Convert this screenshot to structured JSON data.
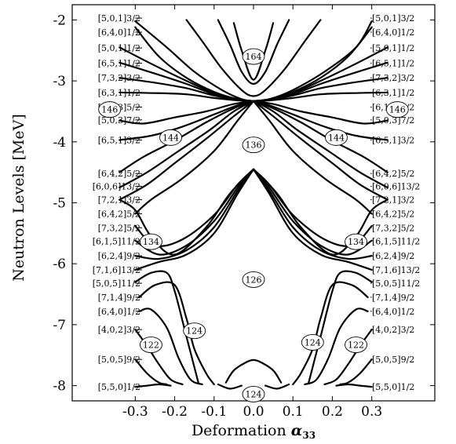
{
  "chart_data": {
    "type": "line",
    "title": "",
    "xlabel": "Deformation",
    "xlabel_symbol": "α",
    "xlabel_subscript": "33",
    "ylabel": "Neutron Levels [MeV]",
    "xlim": [
      -0.46,
      0.46
    ],
    "ylim": [
      -8.25,
      -1.75
    ],
    "x_ticks": [
      -0.3,
      -0.2,
      -0.1,
      0.0,
      0.1,
      0.2,
      0.3
    ],
    "x_tick_labels": [
      "-0.3",
      "-0.2",
      "-0.1",
      "0.0",
      "0.1",
      "0.2",
      "0.3"
    ],
    "y_ticks": [
      -2,
      -3,
      -4,
      -5,
      -6,
      -7,
      -8
    ],
    "y_tick_labels": [
      "-2",
      "-3",
      "-4",
      "-5",
      "-6",
      "-7",
      "-8"
    ],
    "grid": false,
    "legend": "none",
    "orbital_labels": [
      {
        "text": "[5,0,1]3/2",
        "y": -1.97
      },
      {
        "text": "[6,4,0]1/2",
        "y": -2.2
      },
      {
        "text": "[5,0,1]1/2",
        "y": -2.46
      },
      {
        "text": "[6,5,1]1/2",
        "y": -2.71
      },
      {
        "text": "[7,3,2]3/2",
        "y": -2.95
      },
      {
        "text": "[6,3,1]1/2",
        "y": -3.19
      },
      {
        "text": "[6,1,3]5/2",
        "y": -3.43
      },
      {
        "text": "[5,0,3]7/2",
        "y": -3.64
      },
      {
        "text": "[6,5,1]3/2",
        "y": -3.97
      },
      {
        "text": "[6,4,2]5/2",
        "y": -4.52
      },
      {
        "text": "[6,0,6]13/2",
        "y": -4.73
      },
      {
        "text": "[7,2,1]3/2",
        "y": -4.95
      },
      {
        "text": "[6,4,2]5/2",
        "y": -5.18
      },
      {
        "text": "[7,3,2]5/2",
        "y": -5.41
      },
      {
        "text": "[6,1,5]11/2",
        "y": -5.63
      },
      {
        "text": "[6,2,4]9/2",
        "y": -5.87
      },
      {
        "text": "[7,1,6]13/2",
        "y": -6.1
      },
      {
        "text": "[5,0,5]11/2",
        "y": -6.32
      },
      {
        "text": "[7,1,4]9/2",
        "y": -6.55
      },
      {
        "text": "[6,4,0]1/2",
        "y": -6.78
      },
      {
        "text": "[4,0,2]3/2",
        "y": -7.08
      },
      {
        "text": "[5,0,5]9/2",
        "y": -7.57
      },
      {
        "text": "[5,5,0]1/2",
        "y": -8.02
      }
    ],
    "magic_numbers": [
      {
        "text": "164",
        "x": 0.0,
        "y": -2.6
      },
      {
        "text": "146",
        "x": -0.365,
        "y": -3.47
      },
      {
        "text": "146",
        "x": 0.365,
        "y": -3.47
      },
      {
        "text": "144",
        "x": -0.21,
        "y": -3.93
      },
      {
        "text": "144",
        "x": 0.21,
        "y": -3.93
      },
      {
        "text": "136",
        "x": 0.0,
        "y": -4.05
      },
      {
        "text": "134",
        "x": -0.26,
        "y": -5.64
      },
      {
        "text": "134",
        "x": 0.26,
        "y": -5.64
      },
      {
        "text": "126",
        "x": 0.0,
        "y": -6.26
      },
      {
        "text": "124",
        "x": -0.15,
        "y": -7.1
      },
      {
        "text": "124",
        "x": 0.15,
        "y": -7.29
      },
      {
        "text": "122",
        "x": -0.26,
        "y": -7.33
      },
      {
        "text": "122",
        "x": 0.26,
        "y": -7.33
      },
      {
        "text": "124",
        "x": 0.0,
        "y": -8.14
      }
    ],
    "series": [
      {
        "x": [
          -0.3,
          -0.22,
          -0.15,
          -0.08,
          -0.03,
          0.0
        ],
        "values": [
          -2.02,
          -2.45,
          -2.85,
          -3.15,
          -3.3,
          -3.33
        ]
      },
      {
        "x": [
          -0.3,
          -0.24,
          -0.17,
          -0.1,
          -0.04,
          0.0
        ],
        "values": [
          -2.12,
          -2.6,
          -2.95,
          -3.18,
          -3.3,
          -3.33
        ]
      },
      {
        "x": [
          -0.34,
          -0.25,
          -0.17,
          -0.1,
          -0.04,
          0.0
        ],
        "values": [
          -2.45,
          -2.75,
          -3.0,
          -3.2,
          -3.3,
          -3.33
        ]
      },
      {
        "x": [
          -0.34,
          -0.25,
          -0.17,
          -0.1,
          -0.04,
          0.0
        ],
        "values": [
          -2.7,
          -2.88,
          -3.05,
          -3.22,
          -3.31,
          -3.33
        ]
      },
      {
        "x": [
          -0.34,
          -0.25,
          -0.17,
          -0.1,
          -0.04,
          0.0
        ],
        "values": [
          -2.95,
          -3.03,
          -3.12,
          -3.24,
          -3.31,
          -3.33
        ]
      },
      {
        "x": [
          -0.34,
          -0.25,
          -0.17,
          -0.1,
          -0.04,
          0.0
        ],
        "values": [
          -3.19,
          -3.2,
          -3.22,
          -3.28,
          -3.32,
          -3.33
        ]
      },
      {
        "x": [
          -0.34,
          -0.28,
          -0.2,
          -0.12,
          -0.05,
          0.0
        ],
        "values": [
          -3.65,
          -3.7,
          -3.6,
          -3.5,
          -3.38,
          -3.33
        ]
      },
      {
        "x": [
          -0.34,
          -0.26,
          -0.18,
          -0.1,
          -0.04,
          0.0
        ],
        "values": [
          -3.97,
          -3.9,
          -3.75,
          -3.55,
          -3.4,
          -3.33
        ]
      },
      {
        "x": [
          -0.34,
          -0.28,
          -0.2,
          -0.12,
          -0.05,
          0.0
        ],
        "values": [
          -4.5,
          -4.25,
          -3.98,
          -3.68,
          -3.45,
          -3.33
        ]
      },
      {
        "x": [
          -0.34,
          -0.27,
          -0.19,
          -0.11,
          -0.05,
          0.0
        ],
        "values": [
          -4.75,
          -4.5,
          -4.15,
          -3.8,
          -3.5,
          -3.33
        ]
      },
      {
        "x": [
          -0.34,
          -0.27,
          -0.2,
          -0.12,
          -0.05,
          0.0
        ],
        "values": [
          -4.95,
          -4.7,
          -4.35,
          -3.95,
          -3.58,
          -3.33
        ]
      },
      {
        "x": [
          -0.3,
          -0.26,
          -0.18,
          -0.1,
          -0.04,
          0.0
        ],
        "values": [
          -5.18,
          -4.95,
          -4.6,
          -4.15,
          -3.65,
          -3.33
        ]
      },
      {
        "x": [
          0.0,
          0.04,
          0.1,
          0.18,
          0.26,
          0.3
        ],
        "values": [
          -3.33,
          -3.3,
          -3.15,
          -2.85,
          -2.45,
          -2.02
        ]
      },
      {
        "x": [
          0.0,
          0.04,
          0.1,
          0.17,
          0.24,
          0.3
        ],
        "values": [
          -3.33,
          -3.3,
          -3.18,
          -2.95,
          -2.6,
          -2.12
        ]
      },
      {
        "x": [
          0.0,
          0.04,
          0.1,
          0.17,
          0.25,
          0.34
        ],
        "values": [
          -3.33,
          -3.3,
          -3.2,
          -3.0,
          -2.75,
          -2.45
        ]
      },
      {
        "x": [
          0.0,
          0.04,
          0.1,
          0.17,
          0.25,
          0.34
        ],
        "values": [
          -3.33,
          -3.31,
          -3.22,
          -3.05,
          -2.88,
          -2.7
        ]
      },
      {
        "x": [
          0.0,
          0.04,
          0.1,
          0.17,
          0.25,
          0.34
        ],
        "values": [
          -3.33,
          -3.31,
          -3.24,
          -3.12,
          -3.03,
          -2.95
        ]
      },
      {
        "x": [
          0.0,
          0.04,
          0.1,
          0.17,
          0.25,
          0.34
        ],
        "values": [
          -3.33,
          -3.32,
          -3.28,
          -3.22,
          -3.2,
          -3.19
        ]
      },
      {
        "x": [
          0.0,
          0.05,
          0.12,
          0.2,
          0.28,
          0.34
        ],
        "values": [
          -3.33,
          -3.38,
          -3.5,
          -3.6,
          -3.7,
          -3.65
        ]
      },
      {
        "x": [
          0.0,
          0.04,
          0.1,
          0.18,
          0.26,
          0.34
        ],
        "values": [
          -3.33,
          -3.4,
          -3.55,
          -3.75,
          -3.9,
          -3.97
        ]
      },
      {
        "x": [
          0.0,
          0.05,
          0.12,
          0.2,
          0.28,
          0.34
        ],
        "values": [
          -3.33,
          -3.45,
          -3.68,
          -3.98,
          -4.25,
          -4.5
        ]
      },
      {
        "x": [
          0.0,
          0.05,
          0.11,
          0.19,
          0.27,
          0.34
        ],
        "values": [
          -3.33,
          -3.5,
          -3.8,
          -4.15,
          -4.5,
          -4.75
        ]
      },
      {
        "x": [
          0.0,
          0.05,
          0.12,
          0.2,
          0.27,
          0.34
        ],
        "values": [
          -3.33,
          -3.58,
          -3.95,
          -4.35,
          -4.7,
          -4.95
        ]
      },
      {
        "x": [
          0.0,
          0.04,
          0.1,
          0.18,
          0.26,
          0.3
        ],
        "values": [
          -3.33,
          -3.65,
          -4.15,
          -4.6,
          -4.95,
          -5.18
        ]
      },
      {
        "x": [
          -0.05,
          -0.03,
          0.0,
          0.03,
          0.05
        ],
        "values": [
          -2.05,
          -2.5,
          -2.98,
          -2.5,
          -2.05
        ]
      },
      {
        "x": [
          -0.09,
          -0.06,
          -0.03,
          0.0,
          0.03,
          0.06,
          0.09
        ],
        "values": [
          -2.0,
          -2.4,
          -2.85,
          -3.05,
          -2.85,
          -2.4,
          -2.0
        ]
      },
      {
        "x": [
          -0.17,
          -0.13,
          -0.08,
          -0.03,
          0.0,
          0.03,
          0.08,
          0.13,
          0.17
        ],
        "values": [
          -2.0,
          -2.35,
          -2.8,
          -3.15,
          -3.25,
          -3.15,
          -2.8,
          -2.35,
          -2.0
        ]
      },
      {
        "x": [
          -0.3,
          -0.25,
          -0.18,
          -0.1,
          -0.04,
          0.0
        ],
        "values": [
          -5.38,
          -5.7,
          -5.6,
          -5.2,
          -4.7,
          -4.45
        ]
      },
      {
        "x": [
          -0.3,
          -0.24,
          -0.17,
          -0.1,
          -0.04,
          0.0
        ],
        "values": [
          -5.62,
          -5.85,
          -5.7,
          -5.3,
          -4.75,
          -4.45
        ]
      },
      {
        "x": [
          -0.3,
          -0.24,
          -0.17,
          -0.1,
          -0.04,
          0.0
        ],
        "values": [
          -5.87,
          -5.92,
          -5.78,
          -5.4,
          -4.8,
          -4.45
        ]
      },
      {
        "x": [
          -0.3,
          -0.24,
          -0.17,
          -0.1,
          -0.04,
          0.0
        ],
        "values": [
          -6.1,
          -5.97,
          -5.85,
          -5.5,
          -4.85,
          -4.45
        ]
      },
      {
        "x": [
          -0.34,
          -0.3,
          -0.26,
          -0.2,
          -0.12,
          -0.06,
          0.0
        ],
        "values": [
          -4.95,
          -5.12,
          -5.55,
          -5.85,
          -5.4,
          -4.85,
          -4.45
        ]
      },
      {
        "x": [
          0.0,
          0.04,
          0.1,
          0.18,
          0.25,
          0.3
        ],
        "values": [
          -4.45,
          -4.7,
          -5.2,
          -5.6,
          -5.7,
          -5.38
        ]
      },
      {
        "x": [
          0.0,
          0.04,
          0.1,
          0.17,
          0.24,
          0.3
        ],
        "values": [
          -4.45,
          -4.75,
          -5.3,
          -5.7,
          -5.85,
          -5.62
        ]
      },
      {
        "x": [
          0.0,
          0.04,
          0.1,
          0.17,
          0.24,
          0.3
        ],
        "values": [
          -4.45,
          -4.8,
          -5.4,
          -5.78,
          -5.92,
          -5.87
        ]
      },
      {
        "x": [
          0.0,
          0.04,
          0.1,
          0.17,
          0.24,
          0.3
        ],
        "values": [
          -4.45,
          -4.85,
          -5.5,
          -5.85,
          -5.97,
          -6.1
        ]
      },
      {
        "x": [
          0.0,
          0.06,
          0.12,
          0.2,
          0.26,
          0.3,
          0.34
        ],
        "values": [
          -4.45,
          -4.85,
          -5.4,
          -5.85,
          -5.55,
          -5.12,
          -4.95
        ]
      },
      {
        "x": [
          -0.3,
          -0.26,
          -0.22,
          -0.2,
          -0.17,
          -0.14
        ],
        "values": [
          -6.3,
          -6.15,
          -6.15,
          -6.45,
          -7.2,
          -7.95
        ]
      },
      {
        "x": [
          -0.29,
          -0.25,
          -0.2,
          -0.17,
          -0.15,
          -0.12,
          -0.1
        ],
        "values": [
          -6.55,
          -6.35,
          -6.35,
          -6.9,
          -7.4,
          -7.8,
          -7.98
        ]
      },
      {
        "x": [
          -0.29,
          -0.26,
          -0.22,
          -0.19,
          -0.16,
          -0.13
        ],
        "values": [
          -6.78,
          -6.75,
          -7.05,
          -7.55,
          -7.9,
          -7.98
        ]
      },
      {
        "x": [
          -0.3,
          -0.27,
          -0.24,
          -0.21,
          -0.18
        ],
        "values": [
          -7.08,
          -7.35,
          -7.65,
          -7.9,
          -7.98
        ]
      },
      {
        "x": [
          -0.3,
          -0.27,
          -0.24,
          -0.22
        ],
        "values": [
          -7.57,
          -7.8,
          -7.95,
          -7.98
        ]
      },
      {
        "x": [
          -0.3,
          -0.27,
          -0.24,
          -0.21
        ],
        "values": [
          -8.02,
          -8.0,
          -7.98,
          -8.0
        ]
      },
      {
        "x": [
          0.14,
          0.17,
          0.2,
          0.22,
          0.26,
          0.3
        ],
        "values": [
          -7.95,
          -7.2,
          -6.45,
          -6.15,
          -6.15,
          -6.3
        ]
      },
      {
        "x": [
          0.1,
          0.12,
          0.15,
          0.17,
          0.2,
          0.25,
          0.29
        ],
        "values": [
          -7.98,
          -7.8,
          -7.4,
          -6.9,
          -6.35,
          -6.35,
          -6.55
        ]
      },
      {
        "x": [
          0.13,
          0.16,
          0.19,
          0.22,
          0.26,
          0.29
        ],
        "values": [
          -7.98,
          -7.9,
          -7.55,
          -7.05,
          -6.75,
          -6.78
        ]
      },
      {
        "x": [
          0.18,
          0.21,
          0.24,
          0.27,
          0.3
        ],
        "values": [
          -7.98,
          -7.9,
          -7.65,
          -7.35,
          -7.08
        ]
      },
      {
        "x": [
          0.22,
          0.24,
          0.27,
          0.3
        ],
        "values": [
          -7.98,
          -7.95,
          -7.8,
          -7.57
        ]
      },
      {
        "x": [
          0.21,
          0.24,
          0.27,
          0.3
        ],
        "values": [
          -8.0,
          -7.98,
          -8.0,
          -8.02
        ]
      },
      {
        "x": [
          -0.07,
          -0.05,
          -0.02,
          0.0,
          0.02,
          0.05,
          0.07
        ],
        "values": [
          -7.95,
          -7.75,
          -7.62,
          -7.58,
          -7.62,
          -7.75,
          -7.95
        ]
      },
      {
        "x": [
          -0.09,
          -0.06,
          -0.03
        ],
        "values": [
          -7.98,
          -8.05,
          -8.0
        ]
      },
      {
        "x": [
          0.03,
          0.06,
          0.09
        ],
        "values": [
          -8.0,
          -8.05,
          -7.98
        ]
      }
    ]
  }
}
